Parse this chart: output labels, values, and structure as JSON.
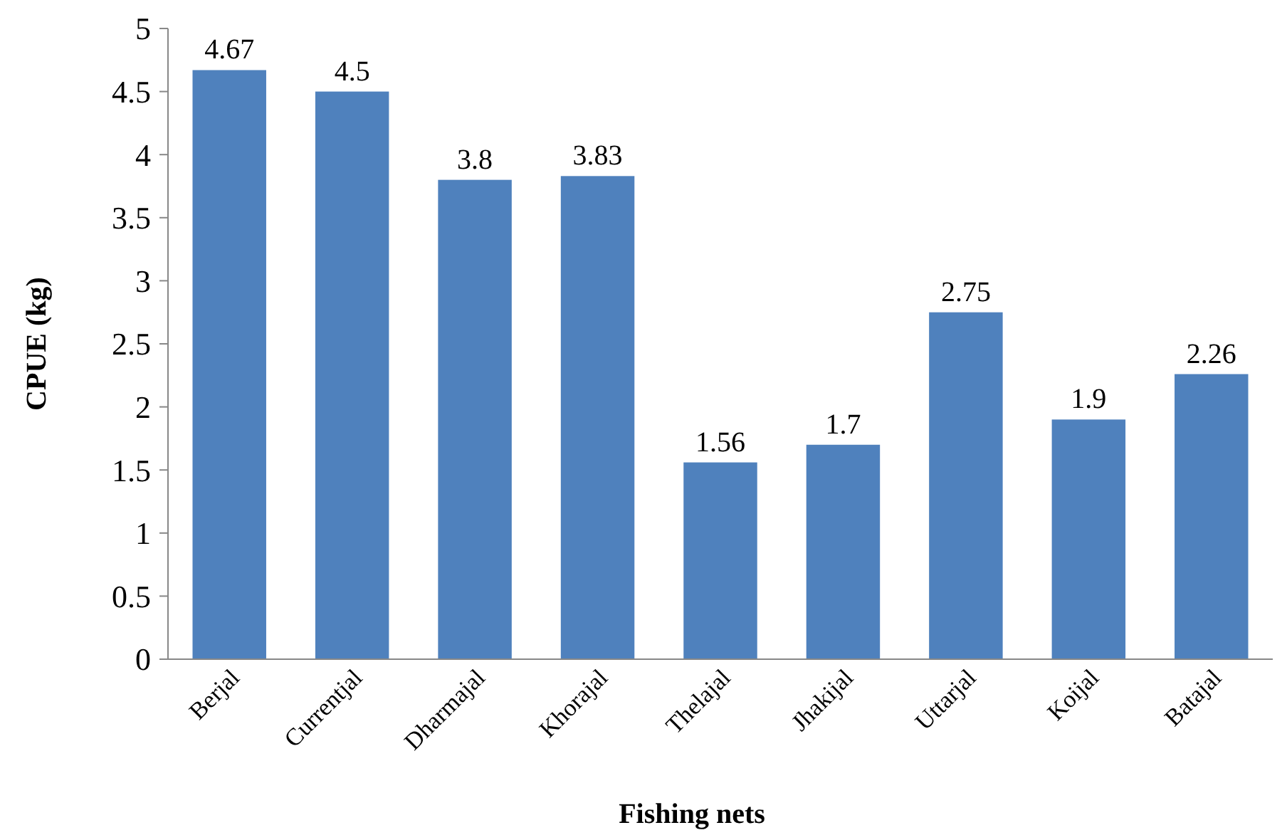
{
  "chart_data": {
    "type": "bar",
    "xlabel": "Fishing nets",
    "ylabel": "CPUE (kg)",
    "categories": [
      "Berjal",
      "Currentjal",
      "Dharmajal",
      "Khorajal",
      "Thelajal",
      "Jhakijal",
      "Uttarjal",
      "Koijal",
      "Batajal"
    ],
    "values": [
      4.67,
      4.5,
      3.8,
      3.83,
      1.56,
      1.7,
      2.75,
      1.9,
      2.26
    ],
    "color": "#4f81bd",
    "ylim": [
      0,
      5
    ],
    "yticks": [
      0,
      0.5,
      1,
      1.5,
      2,
      2.5,
      3,
      3.5,
      4,
      4.5,
      5
    ],
    "data_labels": true
  }
}
